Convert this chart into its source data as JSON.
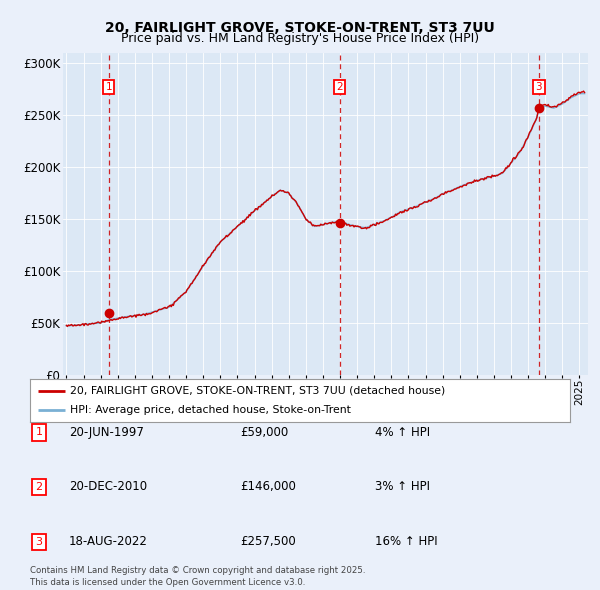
{
  "title_line1": "20, FAIRLIGHT GROVE, STOKE-ON-TRENT, ST3 7UU",
  "title_line2": "Price paid vs. HM Land Registry's House Price Index (HPI)",
  "background_color": "#eaf0fa",
  "plot_bg_color": "#dce8f5",
  "grid_color": "#ffffff",
  "hpi_color": "#7ab0d4",
  "price_color": "#cc0000",
  "sale_dates_num": [
    1997.47,
    2010.97,
    2022.63
  ],
  "sale_prices": [
    59000,
    146000,
    257500
  ],
  "sale_labels": [
    "1",
    "2",
    "3"
  ],
  "annotation_rows": [
    [
      "1",
      "20-JUN-1997",
      "£59,000",
      "4% ↑ HPI"
    ],
    [
      "2",
      "20-DEC-2010",
      "£146,000",
      "3% ↑ HPI"
    ],
    [
      "3",
      "18-AUG-2022",
      "£257,500",
      "16% ↑ HPI"
    ]
  ],
  "legend_line1": "20, FAIRLIGHT GROVE, STOKE-ON-TRENT, ST3 7UU (detached house)",
  "legend_line2": "HPI: Average price, detached house, Stoke-on-Trent",
  "footer": "Contains HM Land Registry data © Crown copyright and database right 2025.\nThis data is licensed under the Open Government Licence v3.0.",
  "ylim": [
    0,
    310000
  ],
  "yticks": [
    0,
    50000,
    100000,
    150000,
    200000,
    250000,
    300000
  ],
  "ytick_labels": [
    "£0",
    "£50K",
    "£100K",
    "£150K",
    "£200K",
    "£250K",
    "£300K"
  ],
  "xmin": 1994.8,
  "xmax": 2025.5,
  "hpi_keypoints": [
    [
      1995.0,
      47000
    ],
    [
      1997.0,
      50000
    ],
    [
      1997.5,
      53000
    ],
    [
      1998.5,
      56000
    ],
    [
      1999.5,
      58000
    ],
    [
      2001.0,
      65000
    ],
    [
      2002.0,
      80000
    ],
    [
      2003.0,
      105000
    ],
    [
      2004.0,
      128000
    ],
    [
      2005.0,
      143000
    ],
    [
      2006.0,
      158000
    ],
    [
      2007.0,
      172000
    ],
    [
      2007.5,
      178000
    ],
    [
      2008.0,
      175000
    ],
    [
      2008.5,
      165000
    ],
    [
      2009.0,
      150000
    ],
    [
      2009.5,
      143000
    ],
    [
      2010.0,
      145000
    ],
    [
      2010.5,
      147000
    ],
    [
      2011.0,
      148000
    ],
    [
      2011.5,
      145000
    ],
    [
      2012.0,
      143000
    ],
    [
      2012.5,
      142000
    ],
    [
      2013.0,
      145000
    ],
    [
      2013.5,
      148000
    ],
    [
      2014.0,
      152000
    ],
    [
      2014.5,
      157000
    ],
    [
      2015.0,
      160000
    ],
    [
      2015.5,
      163000
    ],
    [
      2016.0,
      167000
    ],
    [
      2016.5,
      170000
    ],
    [
      2017.0,
      175000
    ],
    [
      2017.5,
      178000
    ],
    [
      2018.0,
      182000
    ],
    [
      2018.5,
      185000
    ],
    [
      2019.0,
      188000
    ],
    [
      2019.5,
      190000
    ],
    [
      2020.0,
      192000
    ],
    [
      2020.5,
      195000
    ],
    [
      2021.0,
      205000
    ],
    [
      2021.5,
      215000
    ],
    [
      2022.0,
      230000
    ],
    [
      2022.5,
      248000
    ],
    [
      2022.63,
      257500
    ],
    [
      2023.0,
      260000
    ],
    [
      2023.5,
      258000
    ],
    [
      2024.0,
      262000
    ],
    [
      2024.5,
      268000
    ],
    [
      2025.0,
      272000
    ]
  ]
}
